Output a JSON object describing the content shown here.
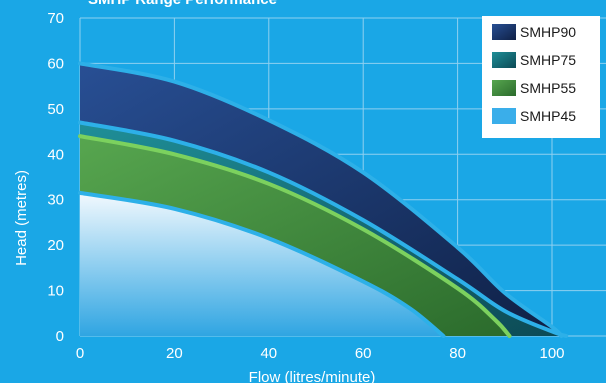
{
  "chart_data": {
    "type": "area",
    "title": "SMHP Range Performance",
    "xlabel": "Flow (litres/minute)",
    "ylabel": "Head (metres)",
    "xlim": [
      0,
      105
    ],
    "ylim": [
      0,
      70
    ],
    "x_ticks": [
      "0",
      "20",
      "40",
      "60",
      "80",
      "100"
    ],
    "y_ticks": [
      "0",
      "10",
      "20",
      "30",
      "40",
      "50",
      "60",
      "70"
    ],
    "grid": true,
    "legend_position": "top-right",
    "series": [
      {
        "name": "SMHP90",
        "color": "#1b3466",
        "x": [
          0,
          20,
          40,
          60,
          80,
          90,
          100,
          102
        ],
        "y": [
          60,
          56,
          47.5,
          36,
          19.5,
          9.5,
          2,
          0
        ]
      },
      {
        "name": "SMHP75",
        "color": "#16707f",
        "x": [
          0,
          20,
          40,
          60,
          80,
          90,
          100,
          103
        ],
        "y": [
          47,
          43,
          36,
          25.5,
          12.5,
          5.5,
          1,
          0
        ]
      },
      {
        "name": "SMHP55",
        "color": "#3f8a3c",
        "x": [
          0,
          20,
          40,
          60,
          80,
          88,
          91
        ],
        "y": [
          44,
          40,
          33.5,
          23.5,
          10.5,
          3.5,
          0
        ]
      },
      {
        "name": "SMHP45",
        "color": "#9fd6f2",
        "x": [
          0,
          20,
          40,
          60,
          70,
          77
        ],
        "y": [
          31.5,
          28,
          21.5,
          12,
          6,
          0
        ]
      }
    ]
  }
}
